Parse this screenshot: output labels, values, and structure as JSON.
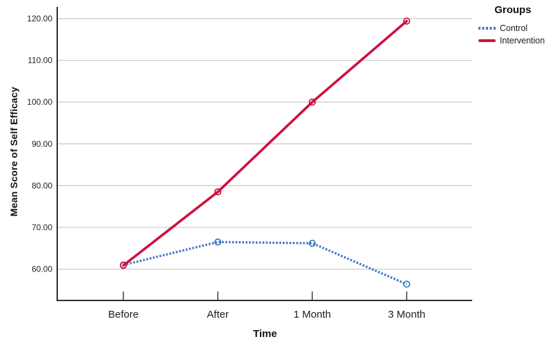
{
  "chart_data": {
    "type": "line",
    "title": "",
    "legend_title": "Groups",
    "xlabel": "Time",
    "ylabel": "Mean Score of Self Efficacy",
    "categories": [
      "Before",
      "After",
      "1 Month",
      "3 Month"
    ],
    "ytick_values": [
      120,
      110,
      100,
      90,
      80,
      70,
      60
    ],
    "ytick_labels": [
      "120.00",
      "110.00",
      "100.00",
      "90.00",
      "80.00",
      "70.00",
      "60.00"
    ],
    "ylim": [
      52.5,
      122.8
    ],
    "grid": "horizontal-only",
    "legend_position": "top-right",
    "axis_color": "#2e2e2e",
    "gridline_color": "#c8c8c8",
    "tick_label_color": "#1c1c1c",
    "series": [
      {
        "name": "Control",
        "color": "#3c78c9",
        "line_style": "dotted",
        "marker": "open-circle",
        "values": [
          61.0,
          66.5,
          66.2,
          56.4
        ]
      },
      {
        "name": "Intervention",
        "color": "#d0103c",
        "line_style": "solid",
        "marker": "open-circle",
        "values": [
          60.9,
          78.5,
          100.0,
          119.4
        ]
      }
    ]
  }
}
